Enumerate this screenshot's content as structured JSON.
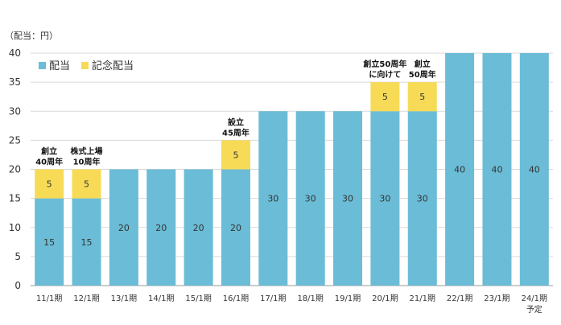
{
  "chart_data": {
    "type": "bar",
    "stacked": true,
    "unit_label": "（配当：円）",
    "ylim": [
      0,
      40
    ],
    "yticks": [
      0,
      5,
      10,
      15,
      20,
      25,
      30,
      35,
      40
    ],
    "grid": true,
    "legend_position": "top-left",
    "categories": [
      "11/1期",
      "12/1期",
      "13/1期",
      "14/1期",
      "15/1期",
      "16/1期",
      "17/1期",
      "18/1期",
      "19/1期",
      "20/1期",
      "21/1期",
      "22/1期",
      "23/1期",
      "24/1期"
    ],
    "category_sublabels": [
      "",
      "",
      "",
      "",
      "",
      "",
      "",
      "",
      "",
      "",
      "",
      "",
      "",
      "予定"
    ],
    "series": [
      {
        "name": "配当",
        "color": "#6bbcd6",
        "values": [
          15,
          15,
          20,
          20,
          20,
          20,
          30,
          30,
          30,
          30,
          30,
          40,
          40,
          40
        ]
      },
      {
        "name": "記念配当",
        "color": "#f7db57",
        "values": [
          5,
          5,
          0,
          0,
          0,
          5,
          0,
          0,
          0,
          5,
          5,
          0,
          0,
          0
        ]
      }
    ],
    "annotations": [
      {
        "index": 0,
        "lines": [
          "創立",
          "40周年"
        ]
      },
      {
        "index": 1,
        "lines": [
          "株式上場",
          "10周年"
        ]
      },
      {
        "index": 5,
        "lines": [
          "設立",
          "45周年"
        ]
      },
      {
        "index": 9,
        "lines": [
          "創立50周年",
          "に向けて"
        ]
      },
      {
        "index": 10,
        "lines": [
          "創立",
          "50周年"
        ]
      }
    ]
  }
}
